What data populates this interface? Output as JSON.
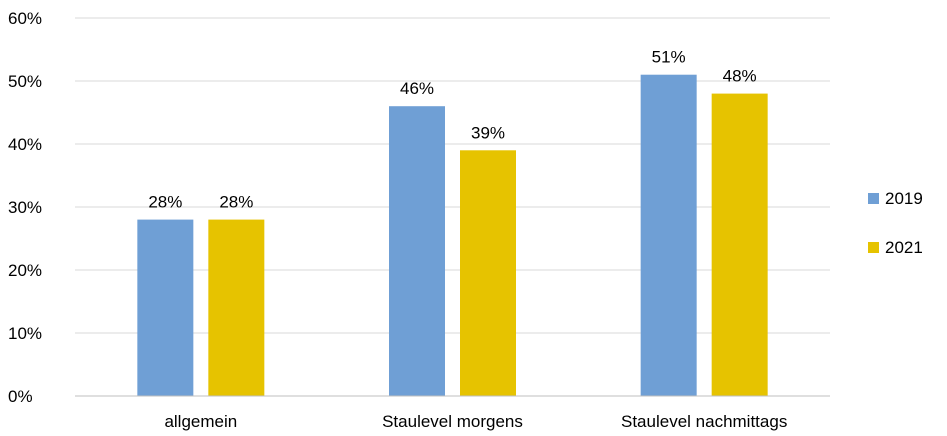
{
  "chart_data": {
    "type": "bar",
    "categories": [
      "allgemein",
      "Staulevel morgens",
      "Staulevel nachmittags"
    ],
    "series": [
      {
        "name": "2019",
        "values": [
          28,
          46,
          51
        ],
        "labels": [
          "28%",
          "46%",
          "51%"
        ],
        "color": "#6f9fd5"
      },
      {
        "name": "2021",
        "values": [
          28,
          39,
          48
        ],
        "labels": [
          "28%",
          "39%",
          "48%"
        ],
        "color": "#e6c300"
      }
    ],
    "ylim": [
      0,
      60
    ],
    "yticks": [
      0,
      10,
      20,
      30,
      40,
      50,
      60
    ],
    "ytick_labels": [
      "0%",
      "10%",
      "20%",
      "30%",
      "40%",
      "50%",
      "60%"
    ],
    "grid": true,
    "legend_position": "right"
  }
}
